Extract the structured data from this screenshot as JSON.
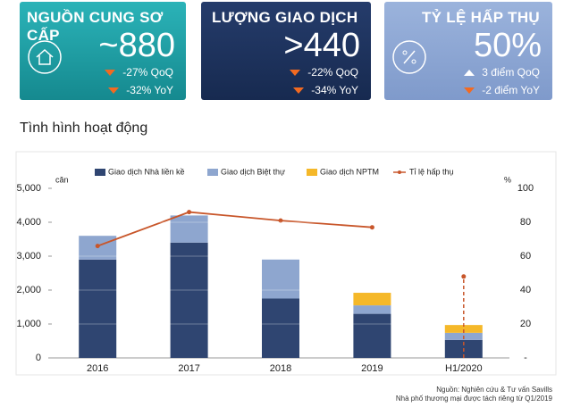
{
  "cards": [
    {
      "title": "NGUỒN CUNG SƠ CẤP",
      "value": "~880",
      "changes": [
        "-27% QoQ",
        "-32% YoY"
      ]
    },
    {
      "title": "LƯỢNG GIAO DỊCH",
      "value": ">440",
      "changes": [
        "-22% QoQ",
        "-34% YoY"
      ]
    },
    {
      "title": "TỶ LỆ HẤP THỤ",
      "value": "50%",
      "changes": [
        "3 điểm QoQ",
        "-2 điểm YoY"
      ]
    }
  ],
  "chart_data": {
    "type": "bar",
    "stacked": true,
    "title": "Tình hình hoạt động",
    "y_label": "căn",
    "y2_label": "%",
    "categories": [
      "2016",
      "2017",
      "2018",
      "2019",
      "H1/2020"
    ],
    "series": [
      {
        "name": "Giao dịch Nhà liền kề",
        "color": "#2f4571",
        "values": [
          2900,
          3400,
          1750,
          1300,
          530
        ]
      },
      {
        "name": "Giao dịch Biệt thự",
        "color": "#8ea6cf",
        "values": [
          700,
          800,
          1150,
          250,
          210
        ]
      },
      {
        "name": "Giao dịch NPTM",
        "color": "#f5b829",
        "values": [
          null,
          null,
          null,
          370,
          230
        ]
      },
      {
        "name": "Tỉ lệ hấp thụ",
        "type": "line",
        "axis": "y2",
        "color": "#c8562a",
        "values": [
          66,
          86,
          81,
          77,
          48
        ]
      }
    ],
    "ylim": [
      0,
      5000
    ],
    "yticks": [
      0,
      {
        "value": 1000,
        "label": "1,000"
      },
      {
        "value": 2000,
        "label": "2,000"
      },
      {
        "value": 3000,
        "label": "3,000"
      },
      {
        "value": 4000,
        "label": "4,000"
      },
      {
        "value": 5000,
        "label": "5,000"
      }
    ],
    "y2lim": [
      0,
      100
    ],
    "y2ticks": [
      {
        "value": 0,
        "label": "-"
      },
      20,
      40,
      60,
      80,
      100
    ],
    "legend": "top",
    "source": [
      "Nguồn: Nghiên cứu & Tư vấn Savills",
      "Nhà phố thương mại được tách riêng từ Q1/2019"
    ]
  }
}
